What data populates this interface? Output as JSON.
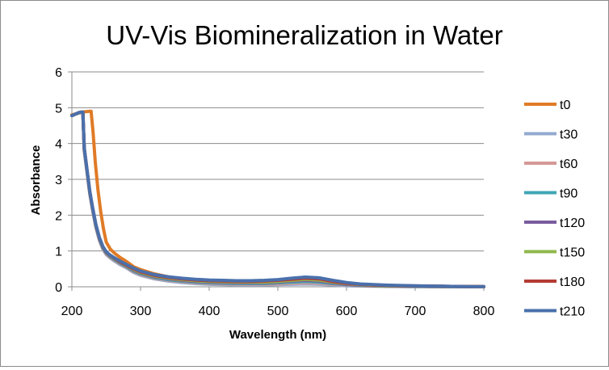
{
  "chart_data": {
    "type": "line",
    "title": "UV-Vis Biomineralization in Water",
    "xlabel": "Wavelength (nm)",
    "ylabel": "Absorbance",
    "xlim": [
      200,
      800
    ],
    "ylim": [
      0,
      6
    ],
    "xticks": [
      200,
      300,
      400,
      500,
      600,
      700,
      800
    ],
    "yticks": [
      0,
      1,
      2,
      3,
      4,
      5,
      6
    ],
    "grid": "horizontal",
    "legend_position": "right",
    "series": [
      {
        "name": "t0",
        "color": "#e07b27",
        "x": [
          200,
          212,
          220,
          226,
          228,
          231,
          234,
          238,
          242,
          246,
          250,
          256,
          262,
          270,
          280,
          290,
          300,
          320,
          340,
          360,
          380,
          400,
          420,
          440,
          460,
          480,
          500,
          520,
          540,
          560,
          580,
          600,
          620,
          640,
          660,
          680,
          700,
          720,
          740,
          760,
          780,
          800
        ],
        "y": [
          4.8,
          4.86,
          4.89,
          4.9,
          4.9,
          4.3,
          3.5,
          2.7,
          2.1,
          1.62,
          1.25,
          1.05,
          0.94,
          0.82,
          0.7,
          0.56,
          0.48,
          0.36,
          0.28,
          0.22,
          0.18,
          0.15,
          0.13,
          0.12,
          0.12,
          0.13,
          0.16,
          0.19,
          0.21,
          0.2,
          0.15,
          0.1,
          0.07,
          0.05,
          0.04,
          0.03,
          0.02,
          0.015,
          0.01,
          0.01,
          0.005,
          0.005
        ]
      },
      {
        "name": "t30",
        "color": "#93a9cf",
        "x": [
          200,
          205,
          210,
          214,
          216,
          218,
          222,
          226,
          230,
          235,
          240,
          245,
          250,
          256,
          262,
          270,
          280,
          290,
          300,
          320,
          340,
          360,
          380,
          400,
          420,
          440,
          460,
          480,
          500,
          520,
          540,
          560,
          580,
          600,
          620,
          640,
          660,
          680,
          700,
          720,
          740,
          760,
          780,
          800
        ],
        "y": [
          4.78,
          4.82,
          4.86,
          4.88,
          4.88,
          3.8,
          3.2,
          2.6,
          2.15,
          1.65,
          1.3,
          1.05,
          0.9,
          0.8,
          0.72,
          0.62,
          0.52,
          0.4,
          0.32,
          0.22,
          0.16,
          0.12,
          0.09,
          0.07,
          0.06,
          0.05,
          0.05,
          0.05,
          0.06,
          0.07,
          0.08,
          0.07,
          0.05,
          0.03,
          0.02,
          0.015,
          0.01,
          0.01,
          0.005,
          0.005,
          0.0,
          0.0,
          0.0,
          0.0
        ]
      },
      {
        "name": "t60",
        "color": "#d49996",
        "x": [
          200,
          205,
          210,
          214,
          216,
          218,
          222,
          226,
          230,
          235,
          240,
          245,
          250,
          256,
          262,
          270,
          280,
          290,
          300,
          320,
          340,
          360,
          380,
          400,
          420,
          440,
          460,
          480,
          500,
          520,
          540,
          560,
          580,
          600,
          620,
          640,
          660,
          680,
          700,
          720,
          740,
          760,
          780,
          800
        ],
        "y": [
          4.78,
          4.82,
          4.86,
          4.88,
          4.88,
          3.82,
          3.22,
          2.62,
          2.17,
          1.67,
          1.32,
          1.07,
          0.92,
          0.82,
          0.74,
          0.64,
          0.54,
          0.42,
          0.34,
          0.24,
          0.18,
          0.14,
          0.11,
          0.09,
          0.08,
          0.07,
          0.07,
          0.07,
          0.08,
          0.1,
          0.11,
          0.1,
          0.07,
          0.05,
          0.03,
          0.02,
          0.015,
          0.01,
          0.01,
          0.005,
          0.005,
          0.0,
          0.0,
          0.0
        ]
      },
      {
        "name": "t90",
        "color": "#3fa6b6",
        "x": [
          200,
          205,
          210,
          214,
          216,
          218,
          222,
          226,
          230,
          235,
          240,
          245,
          250,
          256,
          262,
          270,
          280,
          290,
          300,
          320,
          340,
          360,
          380,
          400,
          420,
          440,
          460,
          480,
          500,
          520,
          540,
          560,
          580,
          600,
          620,
          640,
          660,
          680,
          700,
          720,
          740,
          760,
          780,
          800
        ],
        "y": [
          4.78,
          4.82,
          4.86,
          4.88,
          4.88,
          3.84,
          3.24,
          2.64,
          2.19,
          1.69,
          1.34,
          1.09,
          0.94,
          0.84,
          0.76,
          0.66,
          0.56,
          0.44,
          0.36,
          0.26,
          0.2,
          0.16,
          0.13,
          0.11,
          0.1,
          0.09,
          0.09,
          0.09,
          0.11,
          0.13,
          0.15,
          0.13,
          0.09,
          0.06,
          0.04,
          0.03,
          0.02,
          0.015,
          0.01,
          0.01,
          0.005,
          0.005,
          0.0,
          0.0
        ]
      },
      {
        "name": "t120",
        "color": "#7a5c9e",
        "x": [
          200,
          205,
          210,
          214,
          216,
          218,
          222,
          226,
          230,
          235,
          240,
          245,
          250,
          256,
          262,
          270,
          280,
          290,
          300,
          320,
          340,
          360,
          380,
          400,
          420,
          440,
          460,
          480,
          500,
          520,
          540,
          560,
          580,
          600,
          620,
          640,
          660,
          680,
          700,
          720,
          740,
          760,
          780,
          800
        ],
        "y": [
          4.78,
          4.82,
          4.86,
          4.88,
          4.88,
          3.85,
          3.25,
          2.65,
          2.2,
          1.7,
          1.35,
          1.1,
          0.95,
          0.85,
          0.78,
          0.68,
          0.58,
          0.46,
          0.38,
          0.28,
          0.22,
          0.18,
          0.15,
          0.13,
          0.12,
          0.11,
          0.11,
          0.11,
          0.13,
          0.16,
          0.18,
          0.16,
          0.11,
          0.07,
          0.05,
          0.03,
          0.025,
          0.02,
          0.015,
          0.01,
          0.005,
          0.005,
          0.0,
          0.0
        ]
      },
      {
        "name": "t150",
        "color": "#8fb84a",
        "x": [
          200,
          205,
          210,
          214,
          216,
          218,
          222,
          226,
          230,
          235,
          240,
          245,
          250,
          256,
          262,
          270,
          280,
          290,
          300,
          320,
          340,
          360,
          380,
          400,
          420,
          440,
          460,
          480,
          500,
          520,
          540,
          560,
          580,
          600,
          620,
          640,
          660,
          680,
          700,
          720,
          740,
          760,
          780,
          800
        ],
        "y": [
          4.78,
          4.82,
          4.86,
          4.88,
          4.88,
          3.86,
          3.26,
          2.66,
          2.21,
          1.71,
          1.36,
          1.11,
          0.96,
          0.86,
          0.79,
          0.69,
          0.59,
          0.48,
          0.4,
          0.3,
          0.24,
          0.2,
          0.17,
          0.15,
          0.14,
          0.13,
          0.13,
          0.13,
          0.15,
          0.18,
          0.21,
          0.19,
          0.13,
          0.09,
          0.06,
          0.04,
          0.03,
          0.025,
          0.02,
          0.015,
          0.01,
          0.005,
          0.005,
          0.0
        ]
      },
      {
        "name": "t180",
        "color": "#b43b34",
        "x": [
          200,
          205,
          210,
          214,
          216,
          218,
          222,
          226,
          230,
          235,
          240,
          245,
          250,
          256,
          262,
          270,
          280,
          290,
          300,
          320,
          340,
          360,
          380,
          400,
          420,
          440,
          460,
          480,
          500,
          520,
          540,
          560,
          580,
          600,
          620,
          640,
          660,
          680,
          700,
          720,
          740,
          760,
          780,
          800
        ],
        "y": [
          4.78,
          4.82,
          4.86,
          4.88,
          4.88,
          3.87,
          3.27,
          2.67,
          2.22,
          1.72,
          1.37,
          1.12,
          0.97,
          0.87,
          0.8,
          0.7,
          0.6,
          0.5,
          0.42,
          0.32,
          0.26,
          0.22,
          0.19,
          0.17,
          0.16,
          0.15,
          0.15,
          0.16,
          0.18,
          0.21,
          0.24,
          0.22,
          0.15,
          0.1,
          0.07,
          0.05,
          0.04,
          0.03,
          0.025,
          0.02,
          0.015,
          0.01,
          0.005,
          0.005
        ]
      },
      {
        "name": "t210",
        "color": "#4a70ac",
        "x": [
          200,
          205,
          210,
          214,
          216,
          218,
          222,
          226,
          230,
          235,
          240,
          245,
          250,
          256,
          262,
          270,
          280,
          290,
          300,
          320,
          340,
          360,
          380,
          400,
          420,
          440,
          460,
          480,
          500,
          520,
          540,
          560,
          580,
          600,
          620,
          640,
          660,
          680,
          700,
          720,
          740,
          760,
          780,
          800
        ],
        "y": [
          4.78,
          4.82,
          4.86,
          4.88,
          4.88,
          3.88,
          3.28,
          2.68,
          2.23,
          1.73,
          1.38,
          1.13,
          0.98,
          0.88,
          0.81,
          0.72,
          0.62,
          0.52,
          0.44,
          0.34,
          0.28,
          0.24,
          0.21,
          0.19,
          0.18,
          0.17,
          0.17,
          0.18,
          0.2,
          0.24,
          0.27,
          0.25,
          0.18,
          0.12,
          0.08,
          0.06,
          0.045,
          0.035,
          0.03,
          0.02,
          0.015,
          0.01,
          0.005,
          0.005
        ]
      }
    ]
  }
}
